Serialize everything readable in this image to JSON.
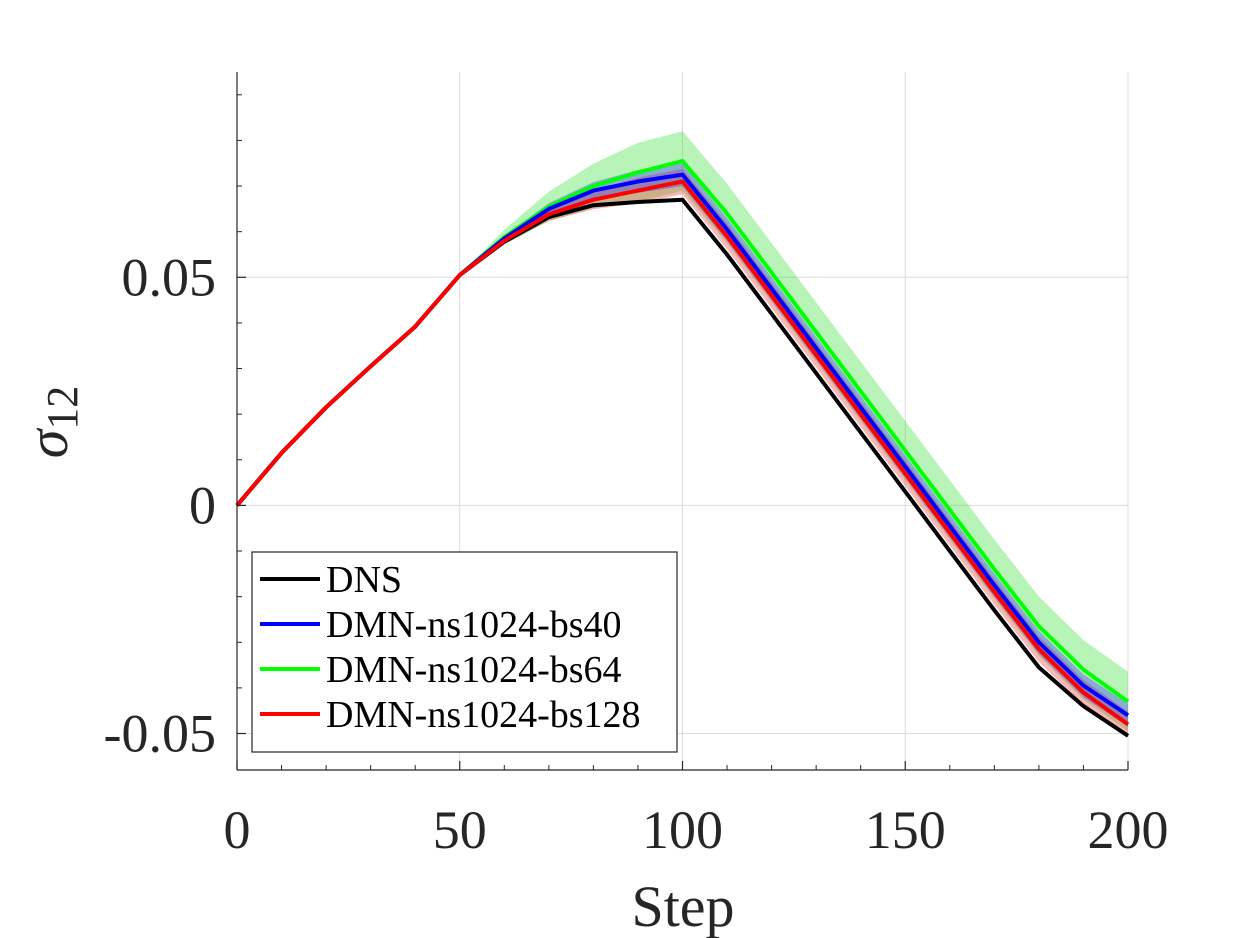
{
  "chart_data": {
    "type": "line",
    "xlabel": "Step",
    "ylabel_symbol": "σ",
    "ylabel_subscript": "12",
    "xlim": [
      0,
      200
    ],
    "ylim": [
      -0.058,
      0.095
    ],
    "xticks": [
      0,
      50,
      100,
      150,
      200
    ],
    "xtick_labels": [
      "0",
      "50",
      "100",
      "150",
      "200"
    ],
    "yticks": [
      -0.05,
      0,
      0.05
    ],
    "ytick_labels": [
      "-0.05",
      "0",
      "0.05"
    ],
    "grid": true,
    "legend_position": "bottom-left",
    "series": [
      {
        "name": "DNS",
        "color": "#000000",
        "band_color": "#000000",
        "x": [
          0,
          10,
          20,
          30,
          40,
          50,
          60,
          70,
          80,
          90,
          100,
          110,
          120,
          130,
          140,
          150,
          160,
          170,
          180,
          190,
          200
        ],
        "values": [
          0,
          0.0115,
          0.0215,
          0.0305,
          0.0392,
          0.0505,
          0.0578,
          0.0632,
          0.0658,
          0.0665,
          0.067,
          0.055,
          0.042,
          0.029,
          0.016,
          0.003,
          -0.01,
          -0.023,
          -0.0355,
          -0.044,
          -0.0505
        ],
        "band": 0
      },
      {
        "name": "DMN-ns1024-bs40",
        "color": "#0000ff",
        "band_color": "#2b2bff",
        "x": [
          0,
          10,
          20,
          30,
          40,
          50,
          60,
          70,
          80,
          90,
          100,
          110,
          120,
          130,
          140,
          150,
          160,
          170,
          180,
          190,
          200
        ],
        "values": [
          0,
          0.0115,
          0.0215,
          0.0305,
          0.0392,
          0.0505,
          0.0585,
          0.065,
          0.069,
          0.071,
          0.0725,
          0.0605,
          0.0475,
          0.0345,
          0.0215,
          0.0085,
          -0.0045,
          -0.0175,
          -0.03,
          -0.0395,
          -0.046
        ],
        "band": 0.0025
      },
      {
        "name": "DMN-ns1024-bs64",
        "color": "#00ff00",
        "band_color": "#33dd33",
        "x": [
          0,
          10,
          20,
          30,
          40,
          50,
          60,
          70,
          80,
          90,
          100,
          110,
          120,
          130,
          140,
          150,
          160,
          170,
          180,
          190,
          200
        ],
        "values": [
          0,
          0.0115,
          0.0215,
          0.0305,
          0.0392,
          0.0505,
          0.0588,
          0.0655,
          0.07,
          0.073,
          0.0755,
          0.064,
          0.051,
          0.038,
          0.025,
          0.012,
          -0.001,
          -0.014,
          -0.0265,
          -0.036,
          -0.043
        ],
        "band": 0.0065
      },
      {
        "name": "DMN-ns1024-bs128",
        "color": "#ff0000",
        "band_color": "#ee3333",
        "x": [
          0,
          10,
          20,
          30,
          40,
          50,
          60,
          70,
          80,
          90,
          100,
          110,
          120,
          130,
          140,
          150,
          160,
          170,
          180,
          190,
          200
        ],
        "values": [
          0,
          0.0115,
          0.0215,
          0.0305,
          0.0392,
          0.0505,
          0.058,
          0.0638,
          0.067,
          0.069,
          0.071,
          0.059,
          0.046,
          0.033,
          0.02,
          0.007,
          -0.006,
          -0.019,
          -0.0315,
          -0.041,
          -0.048
        ],
        "band": 0.0028
      }
    ]
  }
}
